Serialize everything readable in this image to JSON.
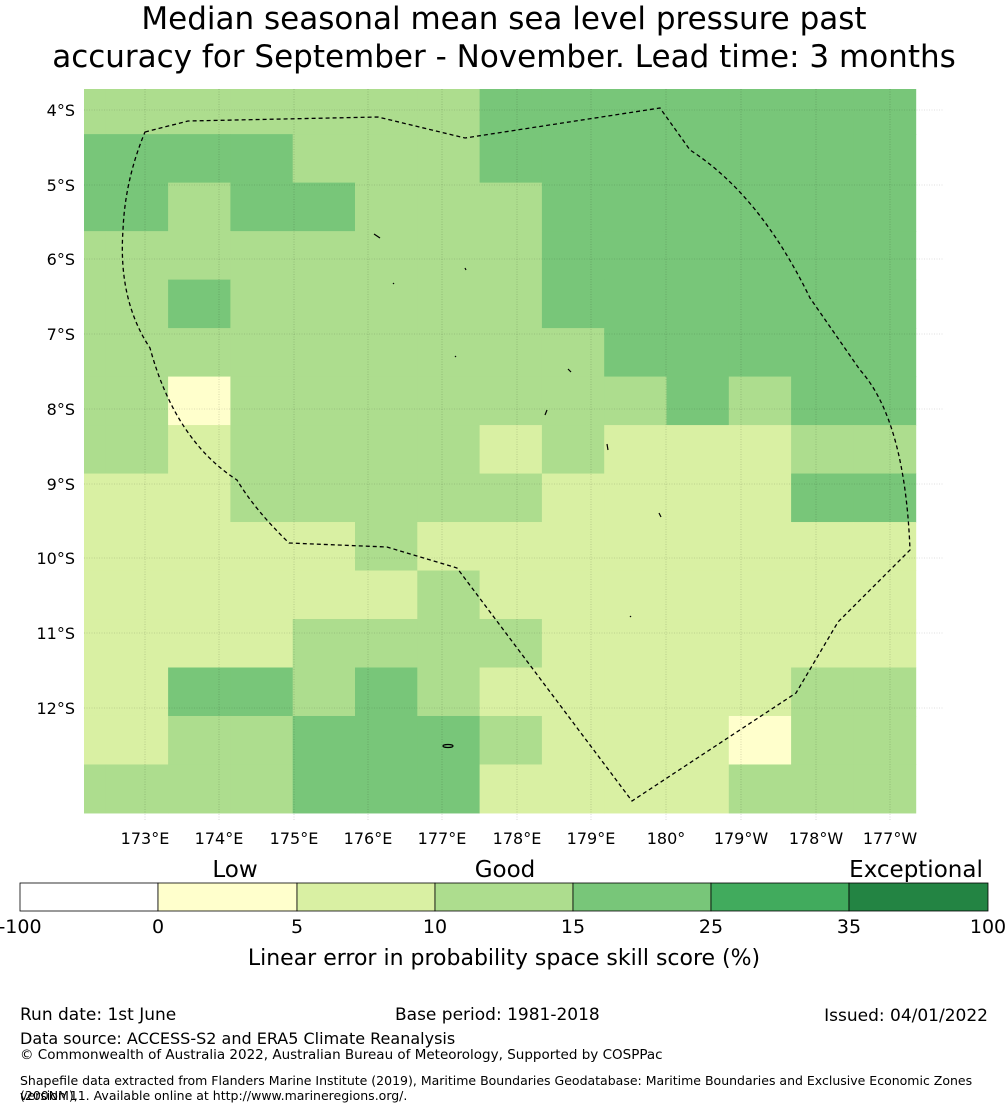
{
  "title_line1": "Median seasonal mean sea level pressure past",
  "title_line2": "accuracy for September - November. Lead time: 3 months",
  "map": {
    "lon_labels": [
      "173°E",
      "174°E",
      "175°E",
      "176°E",
      "177°E",
      "178°E",
      "179°E",
      "180°",
      "179°W",
      "178°W",
      "177°W"
    ],
    "lat_labels": [
      "4°S",
      "5°S",
      "6°S",
      "7°S",
      "8°S",
      "9°S",
      "10°S",
      "11°S",
      "12°S"
    ],
    "grid_rows_legend": "letters map to colorbar categories: a=0-5, b=5-10, c=10-15, d=15-25",
    "grid": [
      "ccccccdddddd",
      "dddcccdddddd",
      "dcddcccddddd",
      "cccccccddddd",
      "cdcccccddddd",
      "ccccccccdddd",
      "cacccccccdcd",
      "cbccccbcbbbc",
      "bbcccccbbbbd",
      "bbbbcbbbbbbb",
      "bbbbbcbbbbbb",
      "bbbccccbbbbb",
      "bddcdcbbbbbc",
      "bccdddcbbbac",
      "cccdddbbbbcc"
    ]
  },
  "colorbar": {
    "category_labels": [
      "Low",
      "Good",
      "Exceptional"
    ],
    "tick_labels": [
      "-100",
      "0",
      "5",
      "10",
      "15",
      "25",
      "35",
      "100"
    ],
    "colors": [
      "#ffffff",
      "#ffffcc",
      "#d9f0a3",
      "#addd8e",
      "#78c679",
      "#41ab5d",
      "#238443"
    ],
    "label": "Linear error in probability space skill score (%)"
  },
  "footer": {
    "run_date": "Run date: 1st June",
    "base_period": "Base period: 1981-2018",
    "issued": "Issued: 04/01/2022",
    "data_source": "Data source: ACCESS-S2 and ERA5 Climate Reanalysis",
    "copyright": "© Commonwealth of Australia 2022, Australian Bureau of Meteorology, Supported by COSPPac",
    "shapefile_line1": "Shapefile data extracted from Flanders Marine Institute (2019), Maritime Boundaries Geodatabase: Maritime Boundaries and Exclusive Economic Zones (200NM),",
    "shapefile_line2": "version 11. Available online at http://www.marineregions.org/."
  }
}
